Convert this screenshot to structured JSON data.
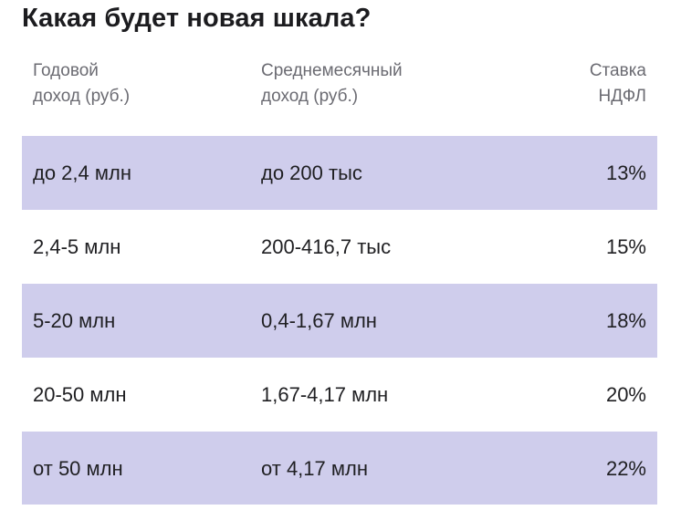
{
  "title": "Какая будет новая шкала?",
  "table": {
    "headers": [
      "Годовой\nдоход (руб.)",
      "Среднемесячный\nдоход (руб.)",
      "Ставка\nНДФЛ"
    ],
    "rows": [
      {
        "annual": "до 2,4 млн",
        "monthly": "до 200 тыс",
        "rate": "13%",
        "shaded": true
      },
      {
        "annual": "2,4-5 млн",
        "monthly": "200-416,7 тыс",
        "rate": "15%",
        "shaded": false
      },
      {
        "annual": "5-20 млн",
        "monthly": "0,4-1,67 млн",
        "rate": "18%",
        "shaded": true
      },
      {
        "annual": "20-50 млн",
        "monthly": "1,67-4,17 млн",
        "rate": "20%",
        "shaded": false
      },
      {
        "annual": "от 50 млн",
        "monthly": "от 4,17 млн",
        "rate": "22%",
        "shaded": true
      }
    ]
  },
  "colors": {
    "shaded_row": "#cfcdec",
    "header_text": "#6b6b72",
    "body_text": "#1f1f22"
  }
}
